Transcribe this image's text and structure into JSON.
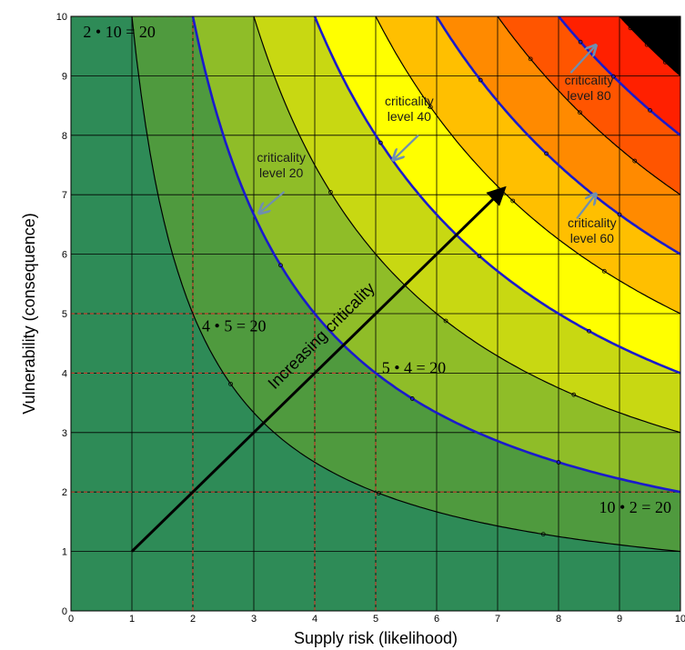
{
  "chart_data": {
    "type": "area",
    "title": "",
    "xlabel": "Supply risk (likelihood)",
    "ylabel": "Vulnerability (consequence)",
    "xlim": [
      0,
      10
    ],
    "ylim": [
      0,
      10
    ],
    "x_ticks": [
      "0",
      "1",
      "2",
      "3",
      "4",
      "5",
      "6",
      "7",
      "8",
      "9",
      "10"
    ],
    "y_ticks": [
      "0",
      "1",
      "2",
      "3",
      "4",
      "5",
      "6",
      "7",
      "8",
      "9",
      "10"
    ],
    "grid": true,
    "band_colors": [
      "#2e8b57",
      "#4f9a3e",
      "#8fbd28",
      "#c8d812",
      "#ffff00",
      "#ffbf00",
      "#ff8a00",
      "#ff5500",
      "#ff2000"
    ],
    "contour_levels": [
      10,
      20,
      30,
      40,
      50,
      60,
      70,
      80,
      90
    ],
    "highlight_levels": [
      20,
      40,
      60,
      80
    ],
    "highlight_color": "#1a1acc",
    "contour_color": "#000000",
    "examples": [
      {
        "x": 2,
        "y": 10,
        "label": "2 • 10 = 20"
      },
      {
        "x": 4,
        "y": 5,
        "label": "4 • 5 = 20"
      },
      {
        "x": 5,
        "y": 4,
        "label": "5 • 4 = 20"
      },
      {
        "x": 10,
        "y": 2,
        "label": "10 • 2 = 20"
      }
    ],
    "example_line_color": "#c0392b",
    "annotations": [
      {
        "label": [
          "criticality",
          "level 20"
        ],
        "x": 3.1,
        "y": 6.7
      },
      {
        "label": [
          "criticality",
          "level 40"
        ],
        "x": 5.3,
        "y": 7.6
      },
      {
        "label": [
          "criticality",
          "level 60"
        ],
        "x": 8.6,
        "y": 7.0
      },
      {
        "label": [
          "criticality",
          "level 80"
        ],
        "x": 8.6,
        "y": 9.5
      }
    ],
    "arrow": {
      "from": [
        1,
        1
      ],
      "to": [
        7.1,
        7.1
      ],
      "label": "Increasing criticality"
    }
  }
}
